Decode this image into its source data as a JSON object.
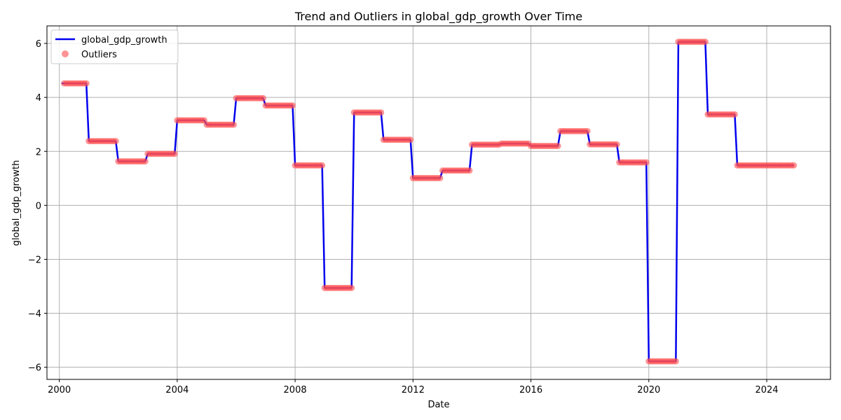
{
  "chart_data": {
    "type": "line",
    "title": "Trend and Outliers in global_gdp_growth Over Time",
    "xlabel": "Date",
    "ylabel": "global_gdp_growth",
    "xlim": [
      "1999-08-01",
      "2026-03-01"
    ],
    "ylim": [
      -6.45,
      6.65
    ],
    "x_ticks": [
      {
        "value": "2000-01-01",
        "label": "2000"
      },
      {
        "value": "2004-01-01",
        "label": "2004"
      },
      {
        "value": "2008-01-01",
        "label": "2008"
      },
      {
        "value": "2012-01-01",
        "label": "2012"
      },
      {
        "value": "2016-01-01",
        "label": "2016"
      },
      {
        "value": "2020-01-01",
        "label": "2020"
      },
      {
        "value": "2024-01-01",
        "label": "2024"
      }
    ],
    "y_ticks": [
      {
        "value": -6,
        "label": "−6"
      },
      {
        "value": -4,
        "label": "−4"
      },
      {
        "value": -2,
        "label": "−2"
      },
      {
        "value": 0,
        "label": "0"
      },
      {
        "value": 2,
        "label": "2"
      },
      {
        "value": 4,
        "label": "4"
      },
      {
        "value": 6,
        "label": "6"
      }
    ],
    "grid": true,
    "legend_position": "top-left",
    "series": [
      {
        "name": "global_gdp_growth",
        "kind": "line",
        "color": "#0000ee"
      },
      {
        "name": "Outliers",
        "kind": "scatter",
        "color": "#ff4c4c"
      }
    ],
    "frequency": "monthly",
    "annual_values": [
      {
        "year": 2000,
        "value": 4.52
      },
      {
        "year": 2001,
        "value": 2.38
      },
      {
        "year": 2002,
        "value": 1.63
      },
      {
        "year": 2003,
        "value": 1.91
      },
      {
        "year": 2004,
        "value": 3.15
      },
      {
        "year": 2005,
        "value": 2.99
      },
      {
        "year": 2006,
        "value": 3.97
      },
      {
        "year": 2007,
        "value": 3.7
      },
      {
        "year": 2008,
        "value": 1.48
      },
      {
        "year": 2009,
        "value": -3.06
      },
      {
        "year": 2010,
        "value": 3.44
      },
      {
        "year": 2011,
        "value": 2.43
      },
      {
        "year": 2012,
        "value": 1.01
      },
      {
        "year": 2013,
        "value": 1.29
      },
      {
        "year": 2014,
        "value": 2.25
      },
      {
        "year": 2015,
        "value": 2.29
      },
      {
        "year": 2016,
        "value": 2.2
      },
      {
        "year": 2017,
        "value": 2.75
      },
      {
        "year": 2018,
        "value": 2.26
      },
      {
        "year": 2019,
        "value": 1.59
      },
      {
        "year": 2020,
        "value": -5.78
      },
      {
        "year": 2021,
        "value": 6.06
      },
      {
        "year": 2022,
        "value": 3.37
      },
      {
        "year": 2023,
        "value": 1.48
      },
      {
        "year": 2024,
        "value": 1.48
      }
    ],
    "line_start": "2000-02-01",
    "line_end": "2024-12-01",
    "outliers_start": "2000-03-01",
    "outliers_end": "2024-12-01"
  }
}
